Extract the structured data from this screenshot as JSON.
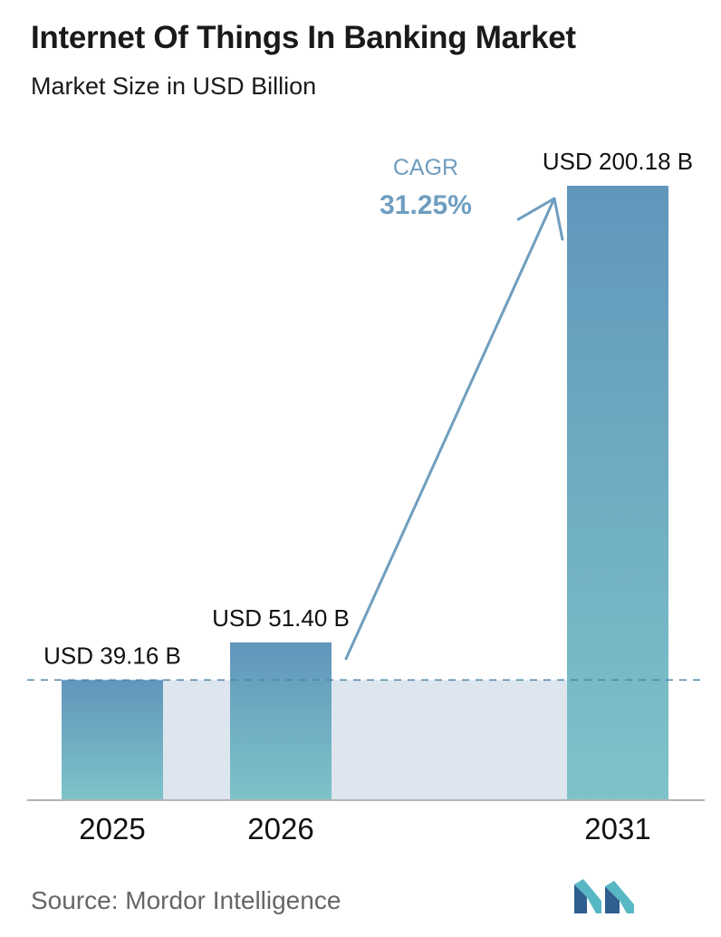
{
  "chart_data": {
    "type": "bar",
    "title": "Internet Of Things In Banking Market",
    "subtitle": "Market Size in USD Billion",
    "categories": [
      "2025",
      "2026",
      "2031"
    ],
    "values": [
      39.16,
      51.4,
      200.18
    ],
    "value_labels": [
      "USD 39.16 B",
      "USD 51.40 B",
      "USD 200.18 B"
    ],
    "ylim": [
      0,
      200.18
    ],
    "grid": false,
    "baseline_reference_value": 39.16,
    "cagr": {
      "label": "CAGR",
      "value": "31.25%"
    },
    "colors": {
      "bar_top": "#6196bb",
      "bar_bottom": "#7ec3c9",
      "band": "#dde6ef",
      "arrow": "#6f9ec0",
      "dashed_line": "#4f86a8",
      "axis": "#b3b3b3"
    }
  },
  "source": "Source:  Mordor Intelligence",
  "logo": {
    "icon": "mordor-intelligence-logo",
    "colors": [
      "#2f5f8f",
      "#58b7c5"
    ]
  }
}
